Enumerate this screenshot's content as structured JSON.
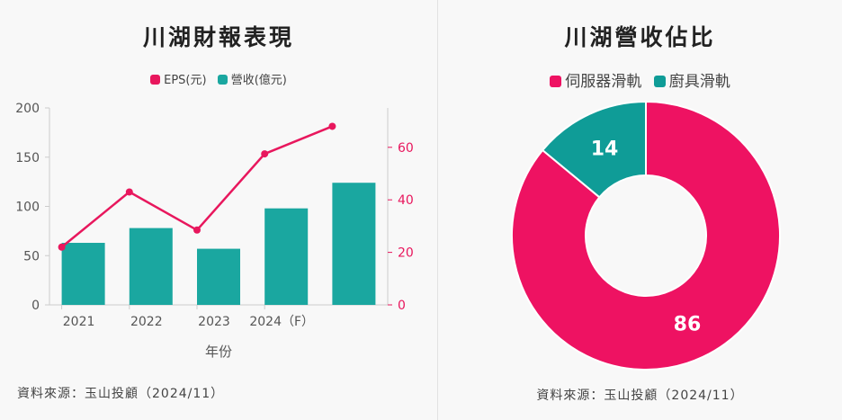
{
  "left": {
    "title": "川湖財報表現",
    "source": "資料來源：玉山投顧（2024/11）"
  },
  "right": {
    "title": "川湖營收佔比",
    "source": "資料來源：玉山投顧（2024/11）"
  },
  "colors": {
    "eps": "#e8175d",
    "revenue": "#1aa7a0",
    "axis": "#555555",
    "grid": "#cccccc"
  },
  "chart_data": [
    {
      "type": "bar",
      "title": "川湖財報表現",
      "categories": [
        "2021",
        "2022",
        "2023",
        "2024（F）",
        ""
      ],
      "series": [
        {
          "name": "營收(億元)",
          "type": "bar",
          "axis": "left",
          "values": [
            63,
            78,
            57,
            98,
            124
          ]
        },
        {
          "name": "EPS(元)",
          "type": "line",
          "axis": "right",
          "values": [
            22,
            43,
            28.5,
            57.5,
            68
          ]
        }
      ],
      "xlabel": "年份",
      "ylim": [
        0,
        200
      ],
      "yticks": [
        0,
        50,
        100,
        150,
        200
      ],
      "y2lim": [
        0,
        75
      ],
      "y2ticks": [
        0,
        20,
        40,
        60
      ],
      "legend": "top-center",
      "grid": false
    },
    {
      "type": "pie",
      "title": "川湖營收佔比",
      "labels": [
        "伺服器滑軌",
        "廚具滑軌"
      ],
      "values": [
        86,
        14
      ],
      "colors": [
        "#ee1262",
        "#0f9c97"
      ],
      "donut": true,
      "legend": "top-center"
    }
  ]
}
